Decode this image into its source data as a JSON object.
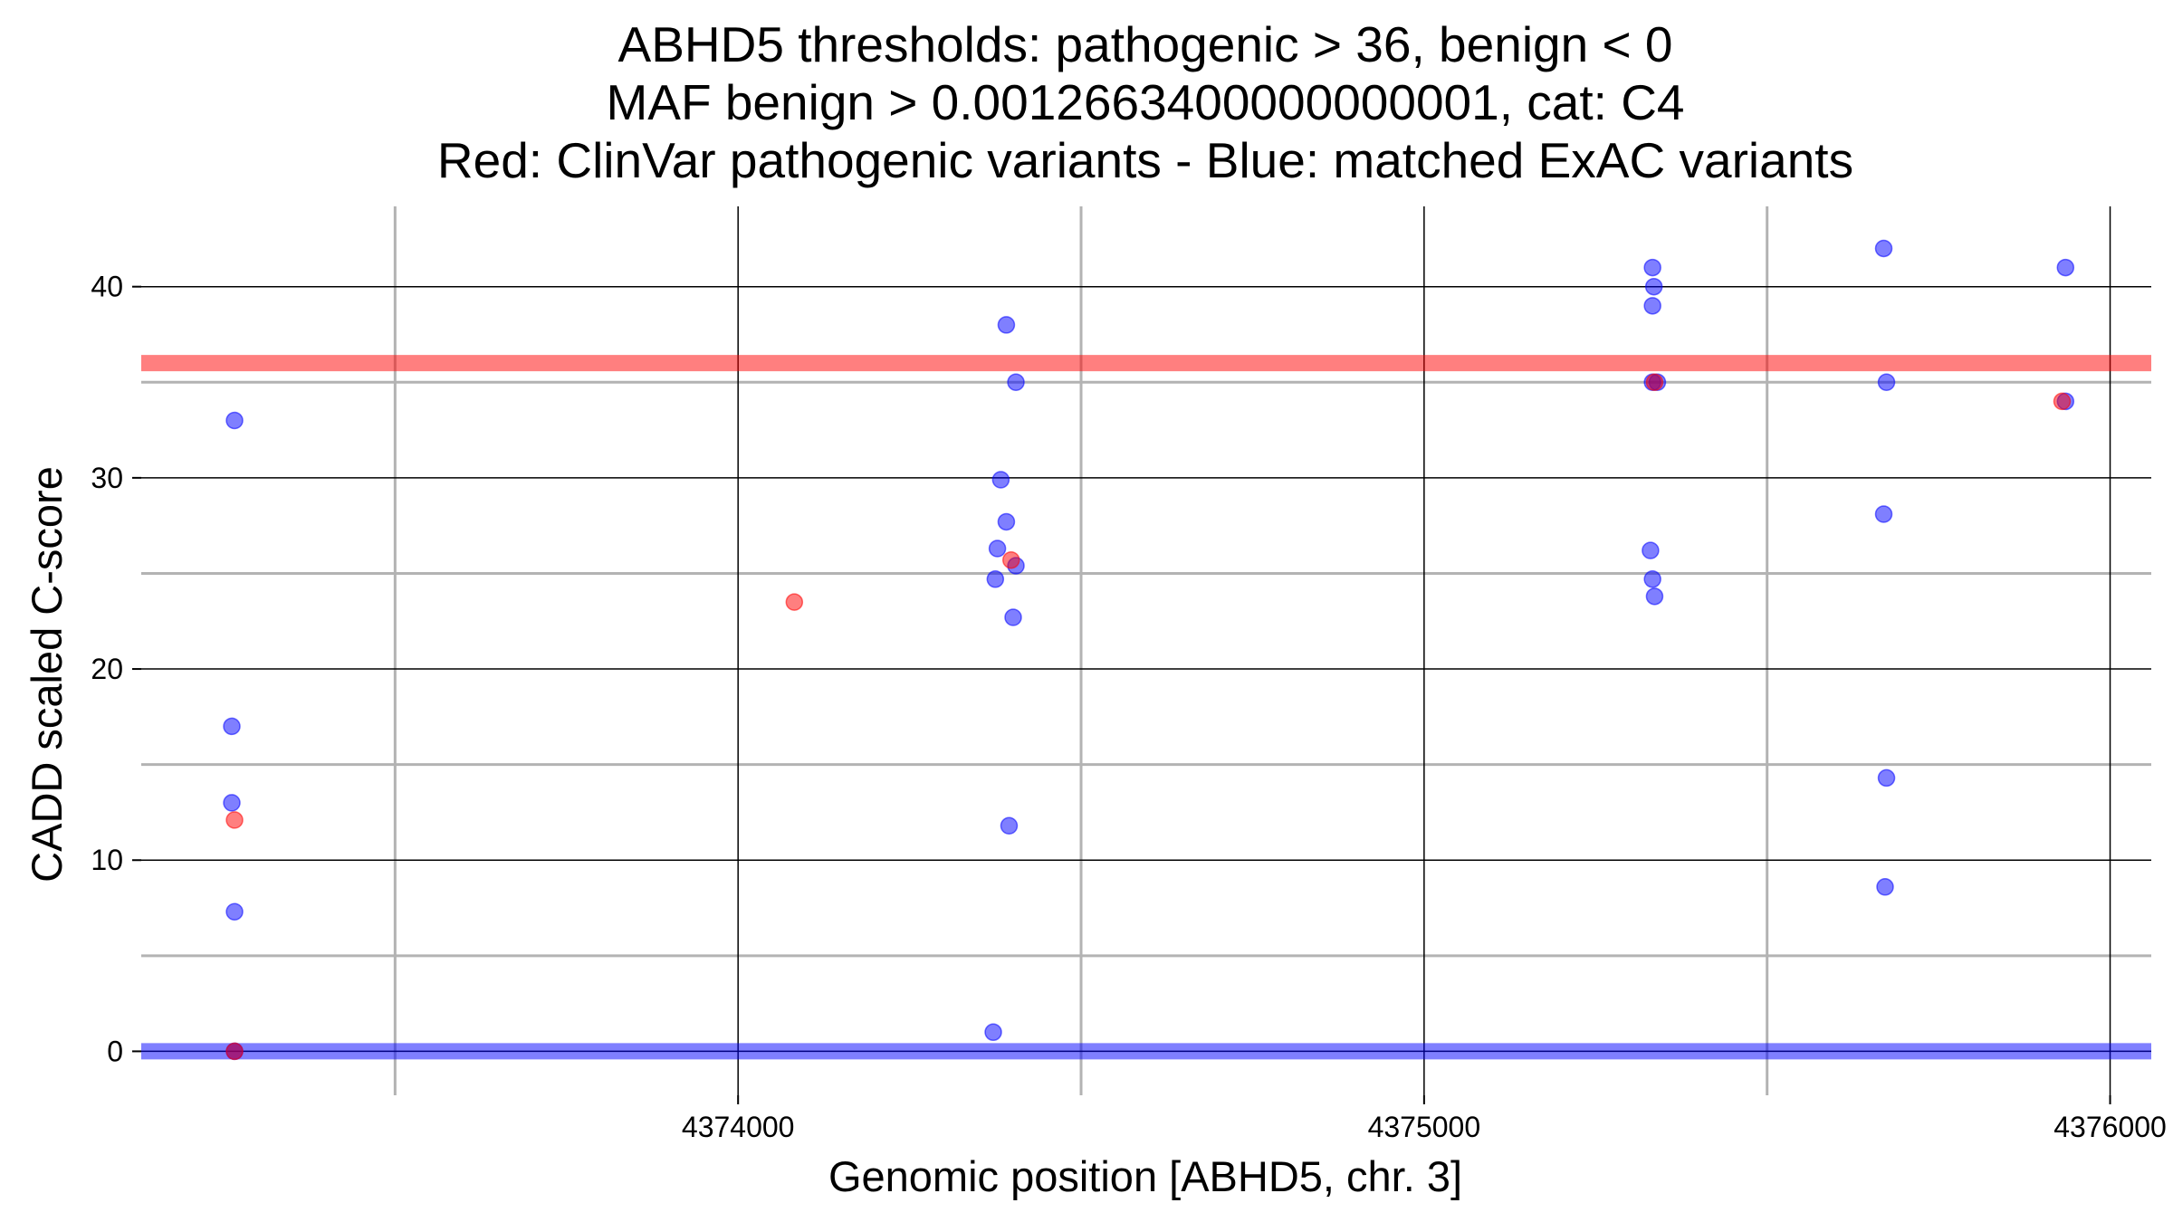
{
  "chart_data": {
    "type": "scatter",
    "title_lines": [
      "ABHD5 thresholds: pathogenic > 36, benign < 0",
      "MAF benign > 0.0012663400000000001, cat: C4",
      "Red: ClinVar pathogenic variants - Blue: matched ExAC variants"
    ],
    "xlabel": "Genomic position [ABHD5, chr. 3]",
    "ylabel": "CADD scaled C-score",
    "xlim": [
      4373130,
      4376060
    ],
    "ylim": [
      -2.3,
      44.2
    ],
    "x_ticks": [
      4374000,
      4375000,
      4376000
    ],
    "x_tick_labels": [
      "4374000",
      "4375000",
      "4376000"
    ],
    "x_minor_gridlines": [
      4373500,
      4374500,
      4375500
    ],
    "y_ticks": [
      0,
      10,
      20,
      30,
      40
    ],
    "y_tick_labels": [
      "0",
      "10",
      "20",
      "30",
      "40"
    ],
    "y_minor_gridlines": [
      5,
      15,
      25,
      35
    ],
    "grid": true,
    "thresholds": [
      {
        "value": 36,
        "color": "#ff0000"
      },
      {
        "value": 0,
        "color": "#0000ff"
      }
    ],
    "series": [
      {
        "color": "#0000ff",
        "points": [
          [
            4373266,
            33
          ],
          [
            4373262,
            17
          ],
          [
            4373262,
            13
          ],
          [
            4373266,
            7.3
          ],
          [
            4373266,
            0
          ],
          [
            4374391,
            38
          ],
          [
            4374405,
            35
          ],
          [
            4374383,
            29.9
          ],
          [
            4374391,
            27.7
          ],
          [
            4374378,
            26.3
          ],
          [
            4374405,
            25.4
          ],
          [
            4374375,
            24.7
          ],
          [
            4374401,
            22.7
          ],
          [
            4374395,
            11.8
          ],
          [
            4374372,
            1
          ],
          [
            4375333,
            41
          ],
          [
            4375335,
            40
          ],
          [
            4375333,
            39
          ],
          [
            4375333,
            35
          ],
          [
            4375340,
            35
          ],
          [
            4375330,
            26.2
          ],
          [
            4375333,
            24.7
          ],
          [
            4375336,
            23.8
          ],
          [
            4375670,
            42
          ],
          [
            4375674,
            35
          ],
          [
            4375670,
            28.1
          ],
          [
            4375674,
            14.3
          ],
          [
            4375672,
            8.6
          ],
          [
            4375935,
            41
          ],
          [
            4375935,
            34
          ]
        ]
      },
      {
        "color": "#ff0000",
        "points": [
          [
            4373266,
            12.1
          ],
          [
            4374082,
            23.5
          ],
          [
            4374398,
            25.7
          ],
          [
            4375336,
            35
          ],
          [
            4375930,
            34
          ],
          [
            4373266,
            0
          ]
        ]
      }
    ]
  }
}
